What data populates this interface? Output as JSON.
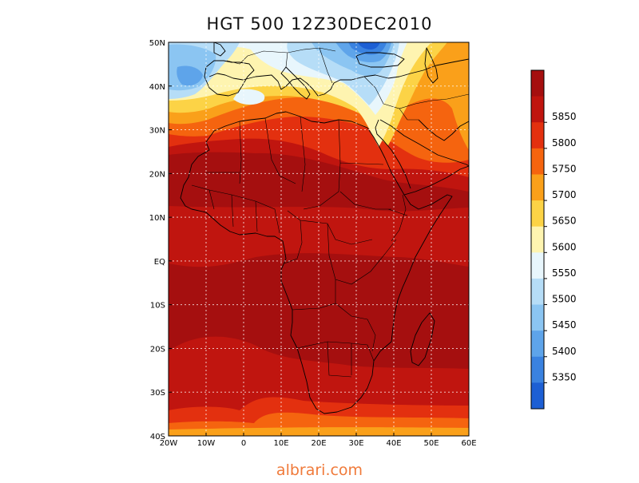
{
  "title": "HGT 500 12Z30DEC2010",
  "footer": {
    "text": "albrari.com",
    "color": "#f07a3a"
  },
  "map": {
    "projection": "lat-lon",
    "lon_range": [
      -20,
      60
    ],
    "lat_range": [
      -40,
      50
    ],
    "lon_ticks": [
      {
        "value": -20,
        "label": "20W"
      },
      {
        "value": -10,
        "label": "10W"
      },
      {
        "value": 0,
        "label": "0"
      },
      {
        "value": 10,
        "label": "10E"
      },
      {
        "value": 20,
        "label": "20E"
      },
      {
        "value": 30,
        "label": "30E"
      },
      {
        "value": 40,
        "label": "40E"
      },
      {
        "value": 50,
        "label": "50E"
      },
      {
        "value": 60,
        "label": "60E"
      }
    ],
    "lat_ticks": [
      {
        "value": 50,
        "label": "50N"
      },
      {
        "value": 40,
        "label": "40N"
      },
      {
        "value": 30,
        "label": "30N"
      },
      {
        "value": 20,
        "label": "20N"
      },
      {
        "value": 10,
        "label": "10N"
      },
      {
        "value": 0,
        "label": "EQ"
      },
      {
        "value": -10,
        "label": "10S"
      },
      {
        "value": -20,
        "label": "20S"
      },
      {
        "value": -30,
        "label": "30S"
      },
      {
        "value": -40,
        "label": "40S"
      }
    ],
    "grid": true
  },
  "legend": {
    "placement": "right",
    "levels": [
      {
        "label": "",
        "color": "#a50f0f"
      },
      {
        "label": "5850",
        "color": "#c0150f"
      },
      {
        "label": "5800",
        "color": "#e3300f"
      },
      {
        "label": "5750",
        "color": "#f5640f"
      },
      {
        "label": "5700",
        "color": "#faa01a"
      },
      {
        "label": "5650",
        "color": "#fcd346"
      },
      {
        "label": "5600",
        "color": "#fef4b0"
      },
      {
        "label": "5550",
        "color": "#e8f6fc"
      },
      {
        "label": "5500",
        "color": "#b6ddf7"
      },
      {
        "label": "5450",
        "color": "#8bc5f2"
      },
      {
        "label": "5400",
        "color": "#5ea4ea"
      },
      {
        "label": "5350",
        "color": "#3a82e0"
      },
      {
        "label": "",
        "color": "#1d5fd4"
      }
    ]
  }
}
